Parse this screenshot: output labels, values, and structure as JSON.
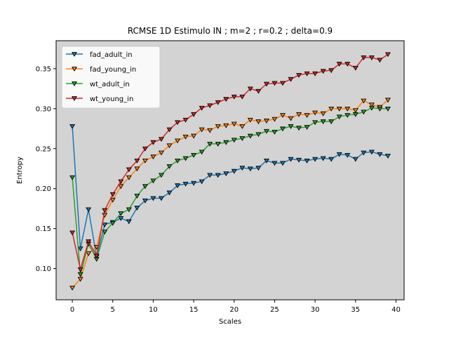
{
  "chart_data": {
    "type": "line",
    "title": "RCMSE 1D Estimulo IN ; m=2 ; r=0.2 ; delta=0.9",
    "xlabel": "Scales",
    "ylabel": "Entropy",
    "xlim": [
      -2,
      41
    ],
    "ylim": [
      0.061,
      0.385
    ],
    "xticks": [
      0,
      5,
      10,
      15,
      20,
      25,
      30,
      35,
      40
    ],
    "yticks": [
      0.1,
      0.15,
      0.2,
      0.25,
      0.3,
      0.35
    ],
    "xtick_labels": [
      "0",
      "5",
      "10",
      "15",
      "20",
      "25",
      "30",
      "35",
      "40"
    ],
    "ytick_labels": [
      "0.10",
      "0.15",
      "0.20",
      "0.25",
      "0.30",
      "0.35"
    ],
    "grid": false,
    "plot_background": "#d3d3d3",
    "legend_position": "upper-left",
    "marker": "triangle-down",
    "x": [
      0,
      1,
      2,
      3,
      4,
      5,
      6,
      7,
      8,
      9,
      10,
      11,
      12,
      13,
      14,
      15,
      16,
      17,
      18,
      19,
      20,
      21,
      22,
      23,
      24,
      25,
      26,
      27,
      28,
      29,
      30,
      31,
      32,
      33,
      34,
      35,
      36,
      37,
      38,
      39
    ],
    "series": [
      {
        "name": "fad_adult_in",
        "color": "#1f77b4",
        "values": [
          0.278,
          0.125,
          0.174,
          0.115,
          0.155,
          0.158,
          0.163,
          0.159,
          0.176,
          0.185,
          0.188,
          0.188,
          0.195,
          0.204,
          0.206,
          0.207,
          0.209,
          0.217,
          0.217,
          0.219,
          0.222,
          0.226,
          0.225,
          0.226,
          0.235,
          0.232,
          0.232,
          0.237,
          0.236,
          0.235,
          0.237,
          0.238,
          0.237,
          0.243,
          0.242,
          0.237,
          0.245,
          0.246,
          0.243,
          0.241
        ]
      },
      {
        "name": "fad_young_in",
        "color": "#ff7f0e",
        "values": [
          0.076,
          0.087,
          0.119,
          0.127,
          0.167,
          0.186,
          0.203,
          0.214,
          0.225,
          0.235,
          0.24,
          0.245,
          0.254,
          0.26,
          0.265,
          0.266,
          0.274,
          0.273,
          0.278,
          0.279,
          0.281,
          0.278,
          0.286,
          0.284,
          0.285,
          0.287,
          0.292,
          0.288,
          0.293,
          0.292,
          0.295,
          0.294,
          0.3,
          0.3,
          0.3,
          0.298,
          0.31,
          0.305,
          0.302,
          0.311
        ]
      },
      {
        "name": "wt_adult_in",
        "color": "#2ca02c",
        "values": [
          0.214,
          0.093,
          0.131,
          0.112,
          0.146,
          0.157,
          0.169,
          0.174,
          0.191,
          0.203,
          0.21,
          0.217,
          0.228,
          0.235,
          0.238,
          0.242,
          0.246,
          0.256,
          0.256,
          0.258,
          0.261,
          0.263,
          0.266,
          0.268,
          0.272,
          0.271,
          0.275,
          0.278,
          0.276,
          0.277,
          0.283,
          0.284,
          0.284,
          0.29,
          0.292,
          0.293,
          0.296,
          0.301,
          0.3,
          0.3
        ]
      },
      {
        "name": "wt_young_in",
        "color": "#d62728",
        "values": [
          0.145,
          0.099,
          0.134,
          0.116,
          0.173,
          0.193,
          0.209,
          0.224,
          0.235,
          0.25,
          0.258,
          0.262,
          0.274,
          0.283,
          0.286,
          0.293,
          0.301,
          0.304,
          0.308,
          0.312,
          0.315,
          0.315,
          0.325,
          0.322,
          0.331,
          0.332,
          0.332,
          0.337,
          0.342,
          0.344,
          0.344,
          0.347,
          0.348,
          0.356,
          0.356,
          0.351,
          0.364,
          0.364,
          0.361,
          0.368
        ]
      }
    ]
  }
}
